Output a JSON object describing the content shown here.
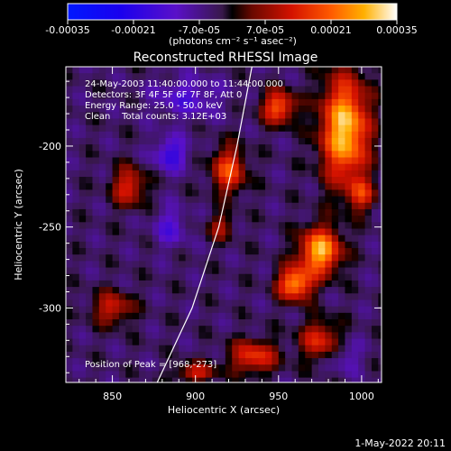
{
  "chart_data": {
    "type": "heatmap",
    "title": "Reconstructed RHESSI Image",
    "xlabel": "Heliocentric X (arcsec)",
    "ylabel": "Heliocentric Y (arcsec)",
    "xlim": [
      822,
      1012
    ],
    "ylim": [
      -346,
      -151
    ],
    "x_ticks": [
      850,
      900,
      950,
      1000
    ],
    "y_ticks": [
      -200,
      -250,
      -300
    ],
    "colorbar": {
      "range": [
        -0.00035,
        0.00035
      ],
      "tick_values": [
        -0.00035,
        -0.00021,
        -7e-05,
        7e-05,
        0.00021,
        0.00035
      ],
      "tick_labels": [
        "-0.00035",
        "-0.00021",
        "-7.0e-05",
        "7.0e-05",
        "0.00021",
        "0.00035"
      ],
      "unit_label": "(photons cm⁻² s⁻¹ asec⁻²)"
    },
    "annotations": {
      "time_range": "24-May-2003 11:40:00.000 to 11:44:00.000",
      "detectors": "Detectors: 3F 4F 5F 6F 7F 8F, Att 0",
      "energy": "Energy Range: 25.0 - 50.0 keV",
      "clean": "Clean    Total counts: 3.12E+03",
      "peak": "Position of Peak = [968,-273]"
    },
    "peak": {
      "x": 968,
      "y": -273
    },
    "limb_x_at_y": [
      [
        934,
        -151
      ],
      [
        925,
        -200
      ],
      [
        914,
        -250
      ],
      [
        898,
        -300
      ],
      [
        877,
        -346
      ]
    ],
    "hot_regions": [
      {
        "x": 990,
        "y": -190,
        "value": 0.00035,
        "rx": 14,
        "ry": 32
      },
      {
        "x": 975,
        "y": -265,
        "value": 0.00033,
        "rx": 12,
        "ry": 14
      },
      {
        "x": 960,
        "y": -285,
        "value": 0.0003,
        "rx": 10,
        "ry": 10
      },
      {
        "x": 950,
        "y": -176,
        "value": 0.00024,
        "rx": 10,
        "ry": 10
      },
      {
        "x": 920,
        "y": -215,
        "value": 0.00022,
        "rx": 10,
        "ry": 14
      },
      {
        "x": 935,
        "y": -330,
        "value": 0.0002,
        "rx": 14,
        "ry": 10
      },
      {
        "x": 975,
        "y": -320,
        "value": 0.00018,
        "rx": 12,
        "ry": 12
      },
      {
        "x": 860,
        "y": -225,
        "value": 0.00018,
        "rx": 10,
        "ry": 12
      },
      {
        "x": 850,
        "y": -300,
        "value": 0.00016,
        "rx": 12,
        "ry": 10
      },
      {
        "x": 900,
        "y": -340,
        "value": 0.00016,
        "rx": 12,
        "ry": 6
      },
      {
        "x": 1000,
        "y": -230,
        "value": 0.00016,
        "rx": 8,
        "ry": 10
      },
      {
        "x": 915,
        "y": -250,
        "value": 0.00012,
        "rx": 8,
        "ry": 8
      }
    ],
    "cold_regions": [
      {
        "x": 895,
        "y": -170,
        "value": -0.0001,
        "rx": 20,
        "ry": 12
      },
      {
        "x": 885,
        "y": -205,
        "value": -0.00015,
        "rx": 10,
        "ry": 10
      },
      {
        "x": 885,
        "y": -250,
        "value": -0.0001,
        "rx": 10,
        "ry": 12
      },
      {
        "x": 990,
        "y": -330,
        "value": -8e-05,
        "rx": 10,
        "ry": 10
      }
    ]
  },
  "footer": {
    "date_stamp": "1-May-2022 20:11"
  }
}
